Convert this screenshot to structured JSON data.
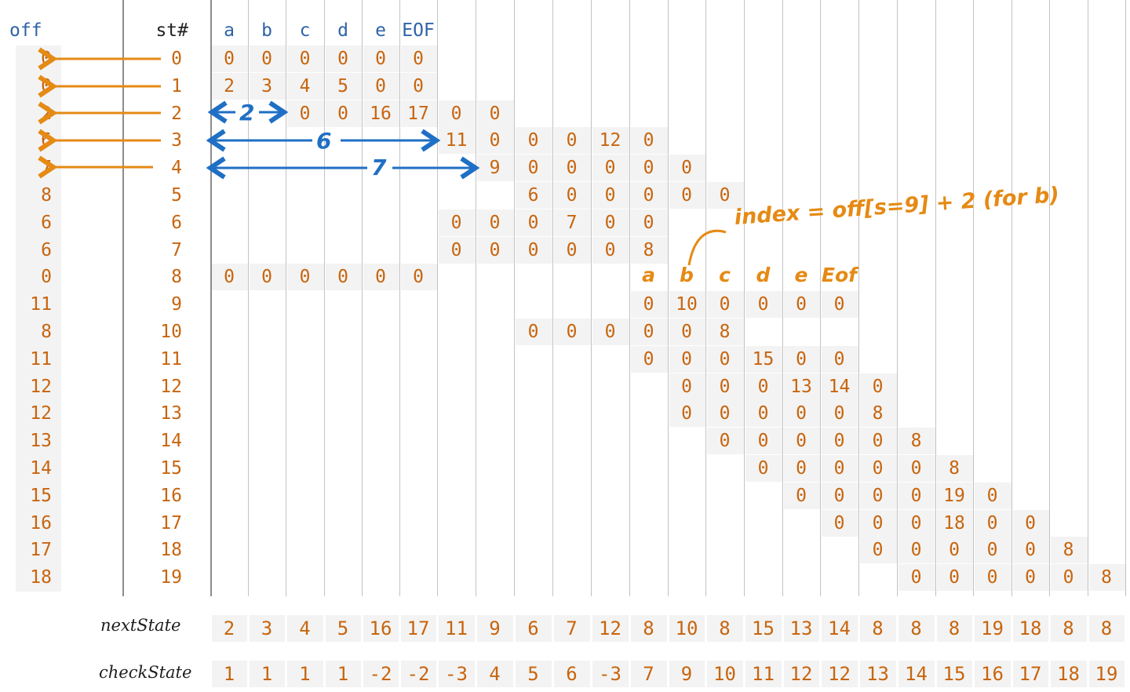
{
  "headers": {
    "off": "off",
    "state": "st#",
    "symbols": [
      "a",
      "b",
      "c",
      "d",
      "e",
      "EOF"
    ]
  },
  "rows": [
    {
      "off": "0",
      "st": "0",
      "pos": 0,
      "cells": [
        "0",
        "0",
        "0",
        "0",
        "0",
        "0"
      ]
    },
    {
      "off": "0",
      "st": "1",
      "pos": 0,
      "cells": [
        "2",
        "3",
        "4",
        "5",
        "0",
        "0"
      ]
    },
    {
      "off": "2",
      "st": "2",
      "pos": 2,
      "cells": [
        "0",
        "0",
        "16",
        "17",
        "0",
        "0"
      ]
    },
    {
      "off": "6",
      "st": "3",
      "pos": 6,
      "cells": [
        "11",
        "0",
        "0",
        "0",
        "12",
        "0"
      ]
    },
    {
      "off": "7",
      "st": "4",
      "pos": 7,
      "cells": [
        "9",
        "0",
        "0",
        "0",
        "0",
        "0"
      ]
    },
    {
      "off": "8",
      "st": "5",
      "pos": 8,
      "cells": [
        "6",
        "0",
        "0",
        "0",
        "0",
        "0"
      ]
    },
    {
      "off": "6",
      "st": "6",
      "pos": 6,
      "cells": [
        "0",
        "0",
        "0",
        "7",
        "0",
        "0"
      ]
    },
    {
      "off": "6",
      "st": "7",
      "pos": 6,
      "cells": [
        "0",
        "0",
        "0",
        "0",
        "0",
        "8"
      ]
    },
    {
      "off": "0",
      "st": "8",
      "pos": 0,
      "cells": [
        "0",
        "0",
        "0",
        "0",
        "0",
        "0"
      ]
    },
    {
      "off": "11",
      "st": "9",
      "pos": 11,
      "cells": [
        "0",
        "10",
        "0",
        "0",
        "0",
        "0"
      ]
    },
    {
      "off": "8",
      "st": "10",
      "pos": 8,
      "cells": [
        "0",
        "0",
        "0",
        "0",
        "0",
        "8"
      ]
    },
    {
      "off": "11",
      "st": "11",
      "pos": 11,
      "cells": [
        "0",
        "0",
        "0",
        "15",
        "0",
        "0"
      ]
    },
    {
      "off": "12",
      "st": "12",
      "pos": 12,
      "cells": [
        "0",
        "0",
        "0",
        "13",
        "14",
        "0"
      ]
    },
    {
      "off": "12",
      "st": "13",
      "pos": 12,
      "cells": [
        "0",
        "0",
        "0",
        "0",
        "0",
        "8"
      ]
    },
    {
      "off": "13",
      "st": "14",
      "pos": 13,
      "cells": [
        "0",
        "0",
        "0",
        "0",
        "0",
        "8"
      ]
    },
    {
      "off": "14",
      "st": "15",
      "pos": 14,
      "cells": [
        "0",
        "0",
        "0",
        "0",
        "0",
        "8"
      ]
    },
    {
      "off": "15",
      "st": "16",
      "pos": 15,
      "cells": [
        "0",
        "0",
        "0",
        "0",
        "19",
        "0"
      ]
    },
    {
      "off": "16",
      "st": "17",
      "pos": 16,
      "cells": [
        "0",
        "0",
        "0",
        "18",
        "0",
        "0"
      ]
    },
    {
      "off": "17",
      "st": "18",
      "pos": 17,
      "cells": [
        "0",
        "0",
        "0",
        "0",
        "0",
        "8"
      ]
    },
    {
      "off": "18",
      "st": "19",
      "pos": 18,
      "cells": [
        "0",
        "0",
        "0",
        "0",
        "0",
        "8"
      ]
    }
  ],
  "nextState": {
    "label": "nextState",
    "values": [
      "2",
      "3",
      "4",
      "5",
      "16",
      "17",
      "11",
      "9",
      "6",
      "7",
      "12",
      "8",
      "10",
      "8",
      "15",
      "13",
      "14",
      "8",
      "8",
      "8",
      "19",
      "18",
      "8",
      "8"
    ]
  },
  "checkState": {
    "label": "checkState",
    "values": [
      "1",
      "1",
      "1",
      "1",
      "-2",
      "-2",
      "-3",
      "4",
      "5",
      "6",
      "-3",
      "7",
      "9",
      "10",
      "11",
      "12",
      "12",
      "13",
      "14",
      "15",
      "16",
      "17",
      "18",
      "19"
    ]
  },
  "annotations": {
    "span_2": "2",
    "span_6": "6",
    "span_7": "7",
    "formula": "index = off[s=9] + 2 (for b)",
    "sub_headers": [
      "a",
      "b",
      "c",
      "d",
      "e",
      "Eof"
    ]
  },
  "colors": {
    "cell_text": "#c8650e",
    "header_text": "#2f63a8",
    "hand_orange": "#e58a14",
    "hand_blue": "#1f6fc5",
    "cell_bg": "#f3f3f3",
    "grid": "#c3c3c3"
  }
}
